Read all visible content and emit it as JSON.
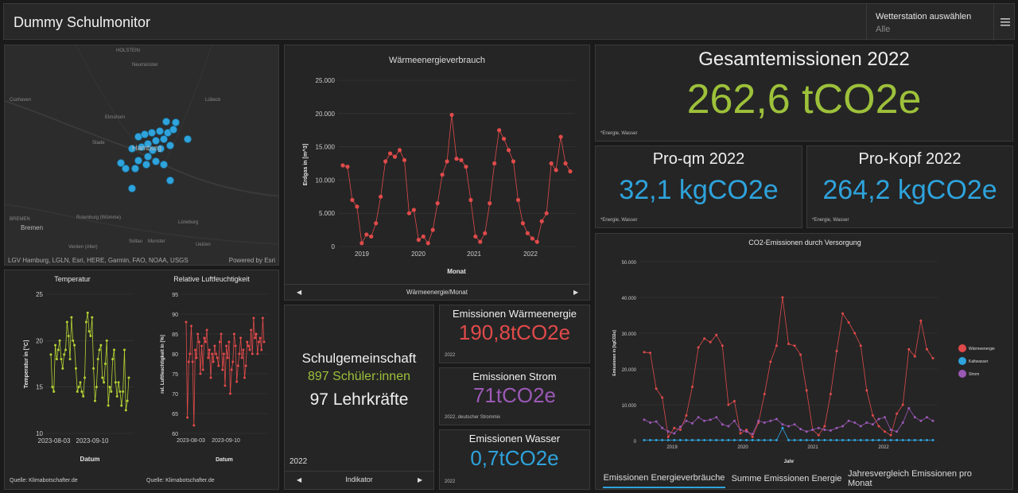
{
  "header": {
    "title": "Dummy Schulmonitor",
    "station_label": "Wetterstation auswählen",
    "station_value": "Alle"
  },
  "map": {
    "places": [
      "HOLSTEIN",
      "Neumünster",
      "Lübeck",
      "Cuxhaven",
      "Elmshorn",
      "Stade",
      "Hamburg",
      "Lüneburg",
      "BREMEN",
      "Bremen",
      "Rotenburg (Wümme)",
      "Soltau",
      "Munster",
      "Uelzen",
      "Verden (Aller)"
    ],
    "attribution": "LGV Hamburg, LGLN, Esri, HERE, Garmin, FAO, NOAA, USGS",
    "powered_by": "Powered by Esri",
    "marker_color": "#2ea3dc"
  },
  "heat_chart": {
    "title": "Wärmeenergieverbrauch",
    "ylabel": "Erdgas in [m^3]",
    "xlabel": "Monat",
    "yticks": [
      "25.000",
      "20.000",
      "15.000",
      "10.000",
      "5.000",
      "0"
    ],
    "xticks": [
      "2019",
      "2020",
      "2021",
      "2022"
    ],
    "nav_label": "Wärmeenergie/Monat",
    "color": "#e04a4a"
  },
  "totals": {
    "title": "Gesamtemissionen 2022",
    "value": "262,6 tCO2e",
    "note": "*Energie, Wasser",
    "color": "#9dc13a"
  },
  "per_sqm": {
    "title": "Pro-qm 2022",
    "value": "32,1 kgCO2e",
    "note": "*Energie, Wasser",
    "color": "#2ea3dc"
  },
  "per_capita": {
    "title": "Pro-Kopf 2022",
    "value": "264,2 kgCO2e",
    "note": "*Energie, Wasser",
    "color": "#2ea3dc"
  },
  "temp_chart": {
    "title": "Temperatur",
    "ylabel": "Temperatur in [°C]",
    "xlabel": "Datum",
    "yticks": [
      "25",
      "20",
      "15",
      "10"
    ],
    "xticks": [
      "2023-08-03",
      "2023-09-10"
    ],
    "source": "Quelle: Klimabotschafter.de",
    "color": "#b5d334"
  },
  "humidity_chart": {
    "title": "Relative Luftfeuchtigkeit",
    "ylabel": "rel. Luftfeuchtigkeit in [%]",
    "xlabel": "Datum",
    "yticks": [
      "95",
      "90",
      "85",
      "80",
      "75",
      "70",
      "65",
      "60"
    ],
    "xticks": [
      "2023-08-03",
      "2023-09-10"
    ],
    "source": "Quelle: Klimabotschafter.de",
    "color": "#e04a4a"
  },
  "community": {
    "title": "Schulgemeinschaft",
    "students": "897 Schüler:innen",
    "teachers": "97 Lehrkräfte",
    "year": "2022",
    "nav_label": "Indikator",
    "students_color": "#9dc13a"
  },
  "em_heat": {
    "title": "Emissionen Wärmeenergie",
    "value": "190,8tCO2e",
    "note": "2022",
    "color": "#e04a4a"
  },
  "em_power": {
    "title": "Emissionen Strom",
    "value": "71tCO2e",
    "note": "2022, deutscher Strommix",
    "color": "#9b59b6"
  },
  "em_water": {
    "title": "Emissionen Wasser",
    "value": "0,7tCO2e",
    "note": "2022",
    "color": "#2ea3dc"
  },
  "co2_chart": {
    "title": "CO2-Emissionen durch Versorgung",
    "ylabel": "Emissionen in [kgCO2e]",
    "xlabel": "Jahr",
    "yticks": [
      "50.000",
      "40.000",
      "30.000",
      "20.000",
      "10.000",
      "0"
    ],
    "xticks": [
      "2019",
      "2020",
      "2021",
      "2022"
    ],
    "legend": [
      "Wärmeenergie",
      "Kaltwasser",
      "Strom"
    ],
    "colors": [
      "#e04a4a",
      "#2ea3dc",
      "#9b59b6"
    ]
  },
  "tabs": [
    "Emissionen Energieverbräuche",
    "Summe Emissionen Energie",
    "Jahresvergleich Emissionen pro Monat"
  ],
  "chart_data": [
    {
      "type": "line",
      "title": "Wärmeenergieverbrauch",
      "xlabel": "Monat",
      "ylabel": "Erdgas in [m^3]",
      "ylim": [
        0,
        25000
      ],
      "x_start": "2018-10",
      "x_step": "1 month",
      "series": [
        {
          "values": [
            12200,
            12000,
            7000,
            6000,
            500,
            1800,
            1500,
            3500,
            7500,
            12800,
            14000,
            13500,
            14500,
            13000,
            5000,
            5500,
            1000,
            1500,
            500,
            2500,
            6500,
            10800,
            12800,
            19800,
            13200,
            13000,
            12000,
            7000,
            1500,
            700,
            2000,
            6500,
            12500,
            17500,
            16200,
            14500,
            12800,
            7000,
            3500,
            2000,
            1200,
            700,
            3800,
            5000,
            12500,
            11500,
            16500,
            12500,
            11300
          ]
        }
      ],
      "xticks": [
        "2019",
        "2020",
        "2021",
        "2022"
      ]
    },
    {
      "type": "line",
      "title": "Temperatur",
      "xlabel": "Datum",
      "ylabel": "Temperatur in [°C]",
      "ylim": [
        10,
        25
      ],
      "xticks": [
        "2023-08-03",
        "2023-09-10"
      ],
      "series": [
        {
          "values": [
            18.5,
            15,
            14.5,
            19.5,
            18,
            19,
            20,
            18,
            17,
            18.5,
            19,
            22,
            20.5,
            18,
            22.5,
            20,
            19.5,
            17,
            14.5,
            15,
            15.5,
            14.5,
            14,
            16,
            22,
            23,
            21,
            20.5,
            22.5,
            17,
            13.5,
            15,
            18,
            19,
            19.5,
            16,
            15.5,
            17.5,
            20,
            13,
            15,
            14.5,
            18,
            19,
            15.5,
            14,
            15.5,
            14.5,
            13,
            14.5,
            19,
            12.5,
            13.5,
            16
          ]
        }
      ]
    },
    {
      "type": "line",
      "title": "Relative Luftfeuchtigkeit",
      "xlabel": "Datum",
      "ylabel": "rel. Luftfeuchtigkeit in [%]",
      "ylim": [
        60,
        95
      ],
      "xticks": [
        "2023-08-03",
        "2023-09-10"
      ],
      "series": [
        {
          "values": [
            88,
            64,
            78,
            80,
            87,
            78,
            62,
            81,
            79,
            85,
            83,
            75,
            82,
            76,
            84,
            83,
            86,
            79,
            81,
            74,
            80,
            78,
            82,
            80,
            79,
            77,
            83,
            85,
            76,
            80,
            72,
            82,
            79,
            83,
            70,
            76,
            78,
            85,
            82,
            73,
            77,
            80,
            84,
            79,
            81,
            74,
            77,
            83,
            82,
            81,
            86,
            80,
            89,
            84,
            85,
            80,
            83,
            84,
            81,
            89,
            83
          ]
        }
      ]
    },
    {
      "type": "line",
      "title": "CO2-Emissionen durch Versorgung",
      "xlabel": "Jahr",
      "ylabel": "Emissionen in [kgCO2e]",
      "ylim": [
        0,
        50000
      ],
      "x_start": "2018-10",
      "x_step": "1 month",
      "xticks": [
        "2019",
        "2020",
        "2021",
        "2022"
      ],
      "series": [
        {
          "name": "Wärmeenergie",
          "values": [
            24700,
            24500,
            14500,
            12000,
            1000,
            3500,
            3000,
            7000,
            15000,
            26000,
            28500,
            27500,
            29500,
            26500,
            10000,
            11000,
            2000,
            3000,
            1000,
            5000,
            13000,
            22000,
            26500,
            40000,
            27000,
            26500,
            24000,
            14000,
            3000,
            1500,
            4000,
            13000,
            25000,
            35500,
            33000,
            30000,
            26500,
            14000,
            7000,
            4000,
            2500,
            1500,
            7500,
            10000,
            25500,
            23500,
            33500,
            25500,
            23000
          ]
        },
        {
          "name": "Kaltwasser",
          "values": [
            100,
            100,
            100,
            100,
            100,
            100,
            100,
            100,
            100,
            100,
            100,
            100,
            100,
            100,
            100,
            100,
            100,
            100,
            100,
            100,
            100,
            100,
            100,
            3500,
            100,
            100,
            100,
            100,
            100,
            100,
            100,
            100,
            100,
            100,
            100,
            100,
            100,
            100,
            100,
            100,
            100,
            100,
            100,
            100,
            100,
            100,
            100,
            100,
            100
          ]
        },
        {
          "name": "Strom",
          "values": [
            5800,
            5000,
            5300,
            3500,
            2500,
            2000,
            3800,
            5500,
            4800,
            6500,
            5500,
            5800,
            6500,
            4500,
            4000,
            5500,
            3000,
            2500,
            1800,
            5500,
            5000,
            5500,
            6000,
            4500,
            4000,
            4500,
            3200,
            2500,
            3000,
            3500,
            3000,
            2800,
            3500,
            4000,
            5500,
            5000,
            4000,
            5000,
            4500,
            6000,
            6500,
            3000,
            2500,
            5000,
            9000,
            6500,
            5500,
            6500,
            5500
          ]
        }
      ]
    }
  ]
}
